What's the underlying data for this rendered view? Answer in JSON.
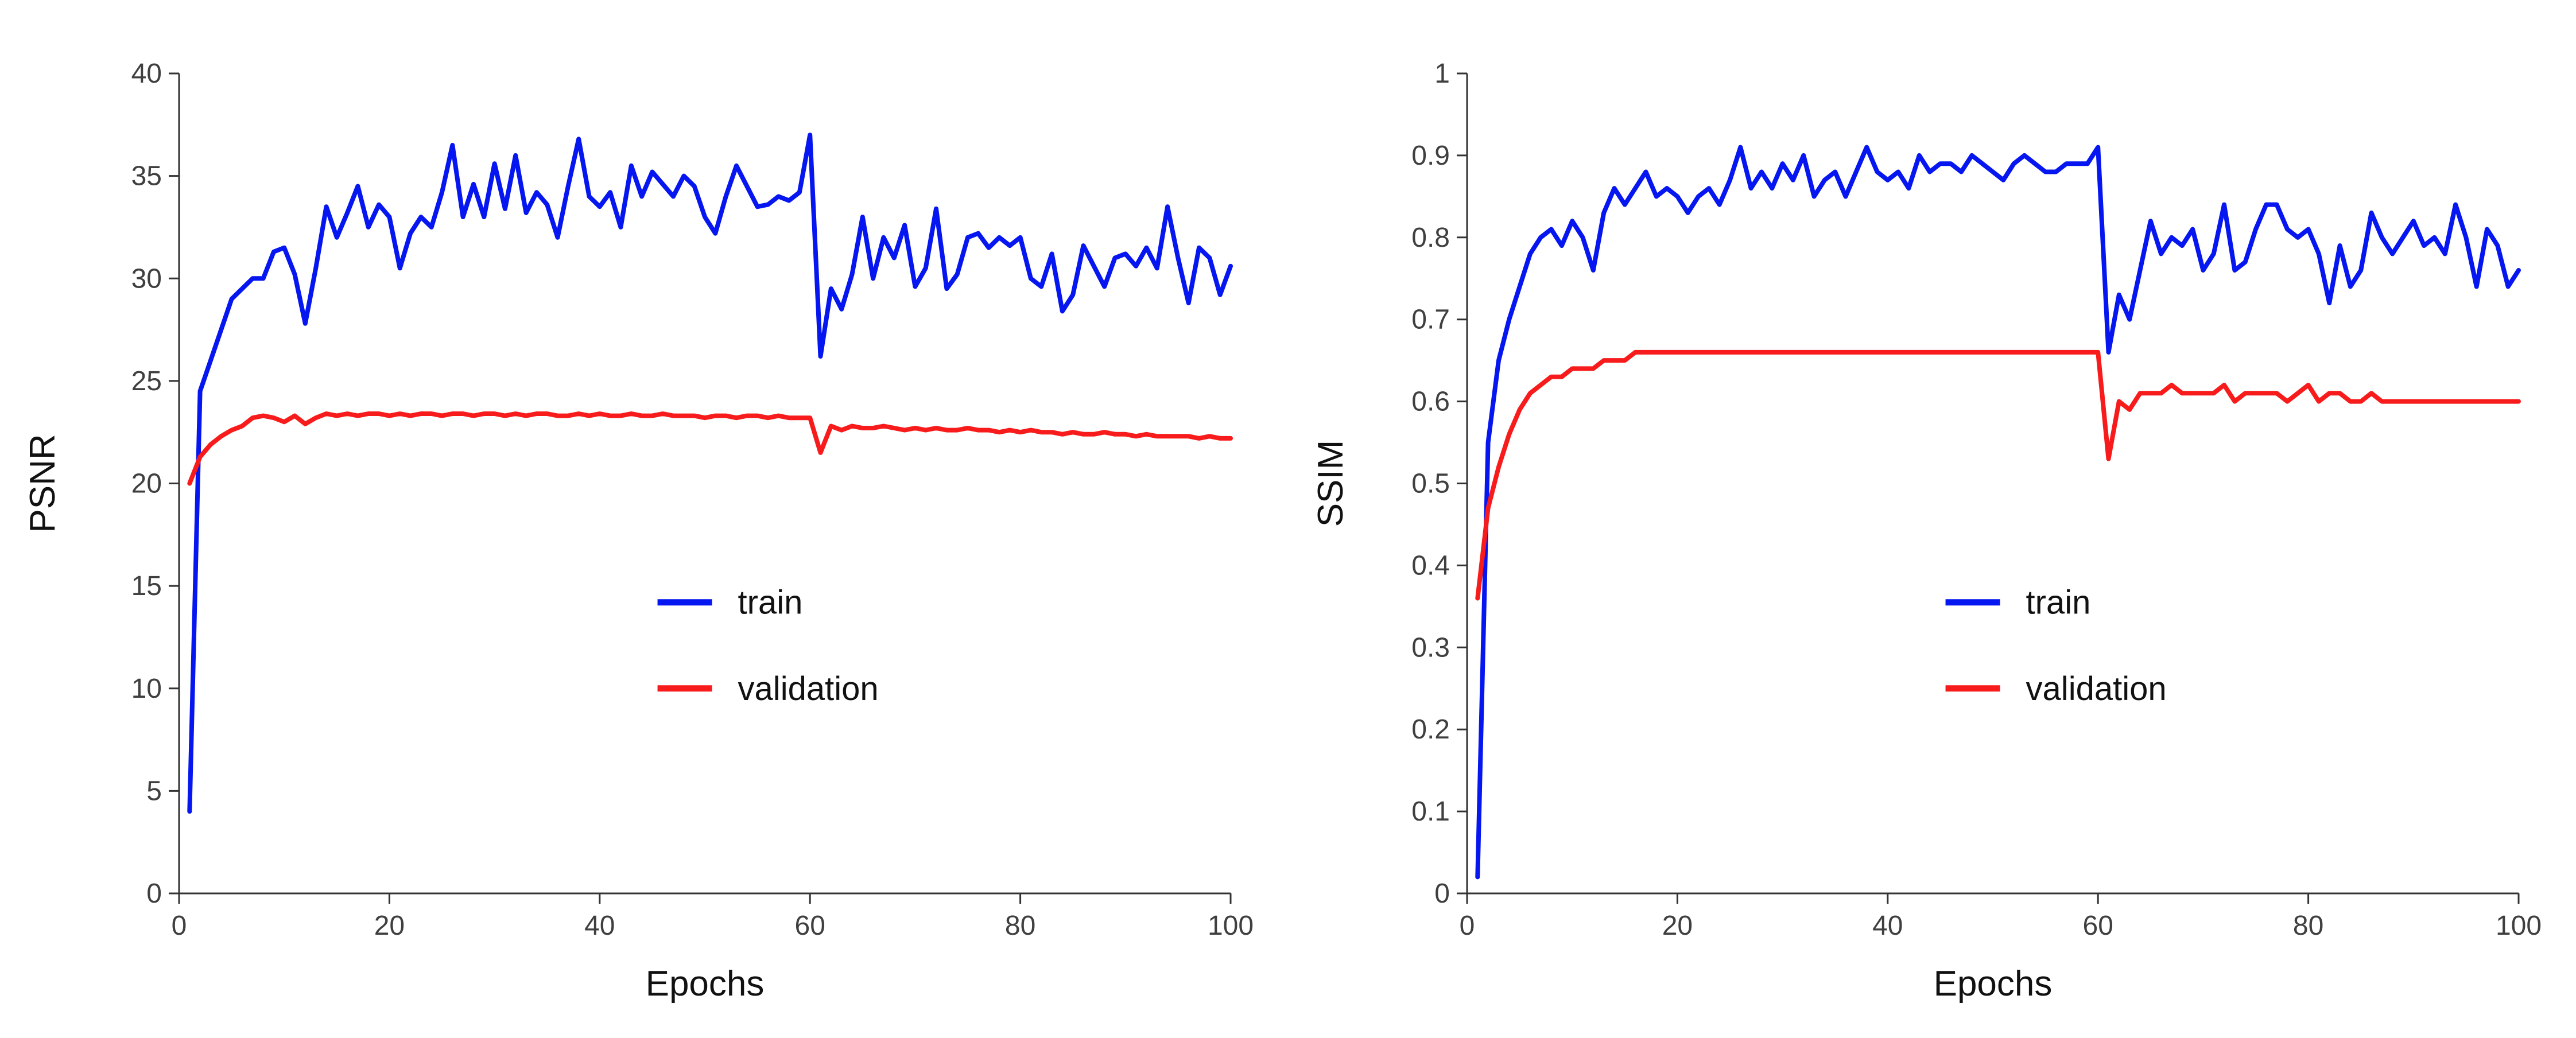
{
  "figure": {
    "background": "#ffffff",
    "axis_color": "#333333",
    "tick_label_color": "#3f3f3f",
    "label_color": "#111111"
  },
  "chart_data": [
    {
      "type": "line",
      "title": "",
      "xlabel": "Epochs",
      "ylabel": "PSNR",
      "xlim": [
        0,
        100
      ],
      "ylim": [
        0,
        40
      ],
      "xticks": [
        0,
        20,
        40,
        60,
        80,
        100
      ],
      "yticks": [
        0,
        5,
        10,
        15,
        20,
        25,
        30,
        35,
        40
      ],
      "grid": false,
      "legend_position": "inside-lower-right",
      "x_start": 1,
      "x_step": 1,
      "series": [
        {
          "name": "train",
          "color": "#0516f0",
          "values": [
            4.0,
            24.5,
            26.0,
            27.5,
            29.0,
            29.5,
            30.0,
            30.0,
            31.3,
            31.5,
            30.2,
            27.8,
            30.5,
            33.5,
            32.0,
            33.2,
            34.5,
            32.5,
            33.6,
            33.0,
            30.5,
            32.2,
            33.0,
            32.5,
            34.2,
            36.5,
            33.0,
            34.6,
            33.0,
            35.6,
            33.4,
            36.0,
            33.2,
            34.2,
            33.6,
            32.0,
            34.5,
            36.8,
            34.0,
            33.5,
            34.2,
            32.5,
            35.5,
            34.0,
            35.2,
            34.6,
            34.0,
            35.0,
            34.5,
            33.0,
            32.2,
            34.0,
            35.5,
            34.5,
            33.5,
            33.6,
            34.0,
            33.8,
            34.2,
            37.0,
            26.2,
            29.5,
            28.5,
            30.2,
            33.0,
            30.0,
            32.0,
            31.0,
            32.6,
            29.6,
            30.5,
            33.4,
            29.5,
            30.2,
            32.0,
            32.2,
            31.5,
            32.0,
            31.6,
            32.0,
            30.0,
            29.6,
            31.2,
            28.4,
            29.2,
            31.6,
            30.6,
            29.6,
            31.0,
            31.2,
            30.6,
            31.5,
            30.5,
            33.5,
            31.0,
            28.8,
            31.5,
            31.0,
            29.2,
            30.6
          ]
        },
        {
          "name": "validation",
          "color": "#f81b1b",
          "values": [
            20.0,
            21.3,
            21.9,
            22.3,
            22.6,
            22.8,
            23.2,
            23.3,
            23.2,
            23.0,
            23.3,
            22.9,
            23.2,
            23.4,
            23.3,
            23.4,
            23.3,
            23.4,
            23.4,
            23.3,
            23.4,
            23.3,
            23.4,
            23.4,
            23.3,
            23.4,
            23.4,
            23.3,
            23.4,
            23.4,
            23.3,
            23.4,
            23.3,
            23.4,
            23.4,
            23.3,
            23.3,
            23.4,
            23.3,
            23.4,
            23.3,
            23.3,
            23.4,
            23.3,
            23.3,
            23.4,
            23.3,
            23.3,
            23.3,
            23.2,
            23.3,
            23.3,
            23.2,
            23.3,
            23.3,
            23.2,
            23.3,
            23.2,
            23.2,
            23.2,
            21.5,
            22.8,
            22.6,
            22.8,
            22.7,
            22.7,
            22.8,
            22.7,
            22.6,
            22.7,
            22.6,
            22.7,
            22.6,
            22.6,
            22.7,
            22.6,
            22.6,
            22.5,
            22.6,
            22.5,
            22.6,
            22.5,
            22.5,
            22.4,
            22.5,
            22.4,
            22.4,
            22.5,
            22.4,
            22.4,
            22.3,
            22.4,
            22.3,
            22.3,
            22.3,
            22.3,
            22.2,
            22.3,
            22.2,
            22.2
          ]
        }
      ]
    },
    {
      "type": "line",
      "title": "",
      "xlabel": "Epochs",
      "ylabel": "SSIM",
      "xlim": [
        0,
        100
      ],
      "ylim": [
        0,
        1
      ],
      "xticks": [
        0,
        20,
        40,
        60,
        80,
        100
      ],
      "yticks": [
        0,
        0.1,
        0.2,
        0.3,
        0.4,
        0.5,
        0.6,
        0.7,
        0.8,
        0.9,
        1
      ],
      "grid": false,
      "legend_position": "inside-lower-right",
      "x_start": 1,
      "x_step": 1,
      "series": [
        {
          "name": "train",
          "color": "#0516f0",
          "values": [
            0.02,
            0.55,
            0.65,
            0.7,
            0.74,
            0.78,
            0.8,
            0.81,
            0.79,
            0.82,
            0.8,
            0.76,
            0.83,
            0.86,
            0.84,
            0.86,
            0.88,
            0.85,
            0.86,
            0.85,
            0.83,
            0.85,
            0.86,
            0.84,
            0.87,
            0.91,
            0.86,
            0.88,
            0.86,
            0.89,
            0.87,
            0.9,
            0.85,
            0.87,
            0.88,
            0.85,
            0.88,
            0.91,
            0.88,
            0.87,
            0.88,
            0.86,
            0.9,
            0.88,
            0.89,
            0.89,
            0.88,
            0.9,
            0.89,
            0.88,
            0.87,
            0.89,
            0.9,
            0.89,
            0.88,
            0.88,
            0.89,
            0.89,
            0.89,
            0.91,
            0.66,
            0.73,
            0.7,
            0.76,
            0.82,
            0.78,
            0.8,
            0.79,
            0.81,
            0.76,
            0.78,
            0.84,
            0.76,
            0.77,
            0.81,
            0.84,
            0.84,
            0.81,
            0.8,
            0.81,
            0.78,
            0.72,
            0.79,
            0.74,
            0.76,
            0.83,
            0.8,
            0.78,
            0.8,
            0.82,
            0.79,
            0.8,
            0.78,
            0.84,
            0.8,
            0.74,
            0.81,
            0.79,
            0.74,
            0.76
          ]
        },
        {
          "name": "validation",
          "color": "#f81b1b",
          "values": [
            0.36,
            0.47,
            0.52,
            0.56,
            0.59,
            0.61,
            0.62,
            0.63,
            0.63,
            0.64,
            0.64,
            0.64,
            0.65,
            0.65,
            0.65,
            0.66,
            0.66,
            0.66,
            0.66,
            0.66,
            0.66,
            0.66,
            0.66,
            0.66,
            0.66,
            0.66,
            0.66,
            0.66,
            0.66,
            0.66,
            0.66,
            0.66,
            0.66,
            0.66,
            0.66,
            0.66,
            0.66,
            0.66,
            0.66,
            0.66,
            0.66,
            0.66,
            0.66,
            0.66,
            0.66,
            0.66,
            0.66,
            0.66,
            0.66,
            0.66,
            0.66,
            0.66,
            0.66,
            0.66,
            0.66,
            0.66,
            0.66,
            0.66,
            0.66,
            0.66,
            0.53,
            0.6,
            0.59,
            0.61,
            0.61,
            0.61,
            0.62,
            0.61,
            0.61,
            0.61,
            0.61,
            0.62,
            0.6,
            0.61,
            0.61,
            0.61,
            0.61,
            0.6,
            0.61,
            0.62,
            0.6,
            0.61,
            0.61,
            0.6,
            0.6,
            0.61,
            0.6,
            0.6,
            0.6,
            0.6,
            0.6,
            0.6,
            0.6,
            0.6,
            0.6,
            0.6,
            0.6,
            0.6,
            0.6,
            0.6
          ]
        }
      ]
    }
  ]
}
